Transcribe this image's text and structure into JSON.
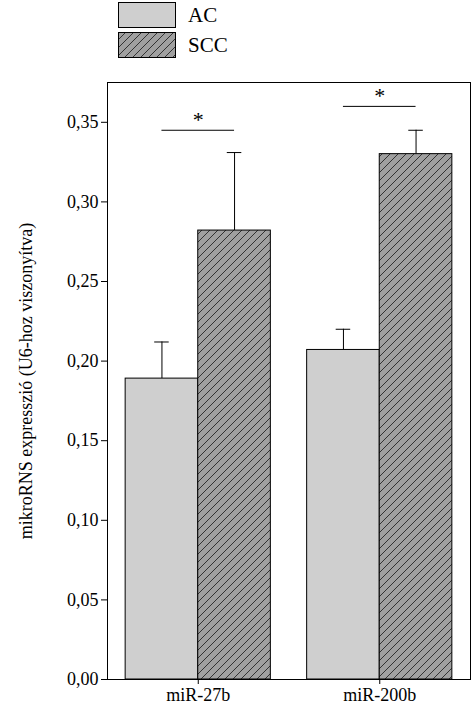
{
  "chart_data": {
    "type": "bar",
    "y_label": "mikroRNS expresszió (U6-hoz viszonyítva)",
    "categories": [
      "miR-27b",
      "miR-200b"
    ],
    "series": [
      {
        "name": "AC",
        "color": "#cfcfcf",
        "values": [
          0.189,
          0.207
        ],
        "errors": [
          0.023,
          0.013
        ]
      },
      {
        "name": "SCC",
        "color": "#a0a0a0",
        "marker": "hatched",
        "values": [
          0.282,
          0.33
        ],
        "errors": [
          0.049,
          0.015
        ]
      }
    ],
    "ylim": [
      0,
      0.375
    ],
    "yticks": [
      {
        "value": 0,
        "label": "0,00"
      },
      {
        "value": 0.05,
        "label": "0,05"
      },
      {
        "value": 0.1,
        "label": "0,10"
      },
      {
        "value": 0.15,
        "label": "0,15"
      },
      {
        "value": 0.2,
        "label": "0,20"
      },
      {
        "value": 0.25,
        "label": "0,25"
      },
      {
        "value": 0.3,
        "label": "0,30"
      },
      {
        "value": 0.35,
        "label": "0,35"
      }
    ],
    "annotations": [
      {
        "text": "*",
        "category": "miR-27b",
        "y": 0.345
      },
      {
        "text": "*",
        "category": "miR-200b",
        "y": 0.36
      }
    ],
    "legend": "top-left",
    "grid": false
  }
}
